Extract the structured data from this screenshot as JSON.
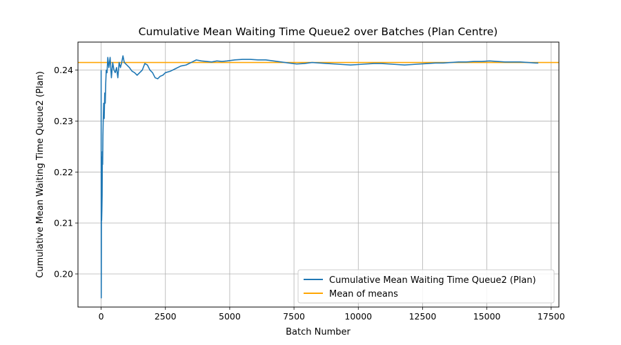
{
  "chart_data": {
    "type": "line",
    "title": "Cumulative Mean Waiting Time Queue2 over Batches (Plan Centre)",
    "xlabel": "Batch Number",
    "ylabel": "Cumulative Mean Waiting Time Queue2 (Plan)",
    "xlim": [
      -900,
      17800
    ],
    "ylim": [
      0.1935,
      0.2455
    ],
    "xticks": [
      0,
      2500,
      5000,
      7500,
      10000,
      12500,
      15000,
      17500
    ],
    "yticks": [
      0.2,
      0.21,
      0.22,
      0.23,
      0.24
    ],
    "xtick_labels": [
      "0",
      "2500",
      "5000",
      "7500",
      "10000",
      "12500",
      "15000",
      "17500"
    ],
    "ytick_labels": [
      "0.20",
      "0.21",
      "0.22",
      "0.23",
      "0.24"
    ],
    "grid": true,
    "legend_position": "lower-right",
    "series": [
      {
        "name": "Cumulative Mean Waiting Time Queue2 (Plan)",
        "color": "#1f77b4",
        "x": [
          1,
          5,
          10,
          15,
          20,
          30,
          40,
          50,
          60,
          70,
          80,
          100,
          120,
          140,
          160,
          180,
          200,
          230,
          260,
          300,
          350,
          400,
          450,
          500,
          550,
          600,
          650,
          700,
          750,
          800,
          850,
          900,
          1000,
          1100,
          1200,
          1300,
          1400,
          1500,
          1600,
          1700,
          1800,
          1900,
          2000,
          2100,
          2200,
          2300,
          2400,
          2500,
          2700,
          2900,
          3100,
          3300,
          3500,
          3700,
          3900,
          4100,
          4300,
          4500,
          4700,
          4900,
          5200,
          5500,
          5800,
          6100,
          6400,
          6700,
          7000,
          7300,
          7600,
          7900,
          8200,
          8500,
          8800,
          9100,
          9400,
          9700,
          10000,
          10300,
          10600,
          10900,
          11200,
          11500,
          11800,
          12100,
          12400,
          12700,
          13000,
          13300,
          13600,
          13900,
          14200,
          14500,
          14800,
          15100,
          15400,
          15700,
          16000,
          16300,
          16600,
          16900,
          17000
        ],
        "y": [
          0.24,
          0.1953,
          0.205,
          0.223,
          0.2105,
          0.2125,
          0.2155,
          0.224,
          0.2215,
          0.227,
          0.2295,
          0.2335,
          0.2305,
          0.2355,
          0.2335,
          0.2375,
          0.24,
          0.2395,
          0.2425,
          0.2405,
          0.2425,
          0.2385,
          0.2415,
          0.24,
          0.2395,
          0.2405,
          0.2385,
          0.2415,
          0.2405,
          0.2415,
          0.2428,
          0.2415,
          0.241,
          0.2405,
          0.2398,
          0.2395,
          0.239,
          0.2395,
          0.24,
          0.2413,
          0.241,
          0.24,
          0.2395,
          0.2385,
          0.2383,
          0.2388,
          0.239,
          0.2395,
          0.2398,
          0.2403,
          0.2408,
          0.241,
          0.2415,
          0.242,
          0.2418,
          0.2417,
          0.2416,
          0.2418,
          0.2417,
          0.2418,
          0.242,
          0.2421,
          0.2421,
          0.242,
          0.242,
          0.2418,
          0.2416,
          0.2414,
          0.2412,
          0.2413,
          0.2415,
          0.2414,
          0.2413,
          0.2412,
          0.2411,
          0.241,
          0.2411,
          0.2412,
          0.2413,
          0.2413,
          0.2412,
          0.2411,
          0.241,
          0.2411,
          0.2412,
          0.2413,
          0.2414,
          0.2414,
          0.2415,
          0.2416,
          0.2416,
          0.2417,
          0.2417,
          0.2418,
          0.2417,
          0.2416,
          0.2416,
          0.2416,
          0.2415,
          0.2414,
          0.2414
        ]
      },
      {
        "name": "Mean of means",
        "color": "#ffa500",
        "type": "hline",
        "y": 0.2415
      }
    ]
  }
}
